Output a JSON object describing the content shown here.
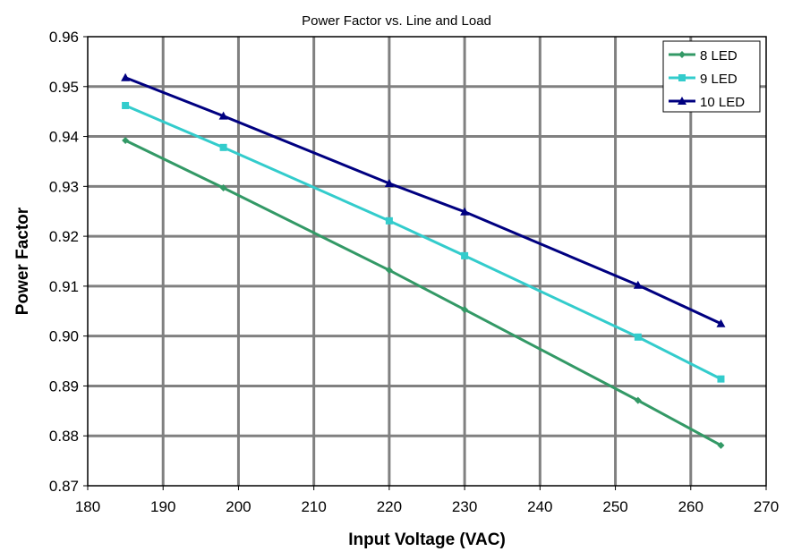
{
  "chart_data": {
    "type": "line",
    "title": "Power Factor vs. Line and Load",
    "xlabel": "Input Voltage (VAC)",
    "ylabel": "Power Factor",
    "xlim": [
      180,
      270
    ],
    "ylim": [
      0.87,
      0.96
    ],
    "xticks": [
      180,
      190,
      200,
      210,
      220,
      230,
      240,
      250,
      260,
      270
    ],
    "yticks": [
      "0.87",
      "0.88",
      "0.89",
      "0.90",
      "0.91",
      "0.92",
      "0.93",
      "0.94",
      "0.95",
      "0.96"
    ],
    "grid": true,
    "legend_position": "top-right",
    "x": [
      185,
      198,
      220,
      230,
      253,
      264
    ],
    "series": [
      {
        "name": "8 LED",
        "color": "#339966",
        "marker": "diamond",
        "values": [
          0.9392,
          0.9297,
          0.9132,
          0.9053,
          0.8871,
          0.8781
        ]
      },
      {
        "name": "9 LED",
        "color": "#33CCCC",
        "marker": "square",
        "values": [
          0.9462,
          0.9378,
          0.9231,
          0.9161,
          0.8998,
          0.8914
        ]
      },
      {
        "name": "10 LED",
        "color": "#000080",
        "marker": "triangle",
        "values": [
          0.9518,
          0.9441,
          0.9306,
          0.9249,
          0.9102,
          0.9025
        ]
      }
    ]
  }
}
